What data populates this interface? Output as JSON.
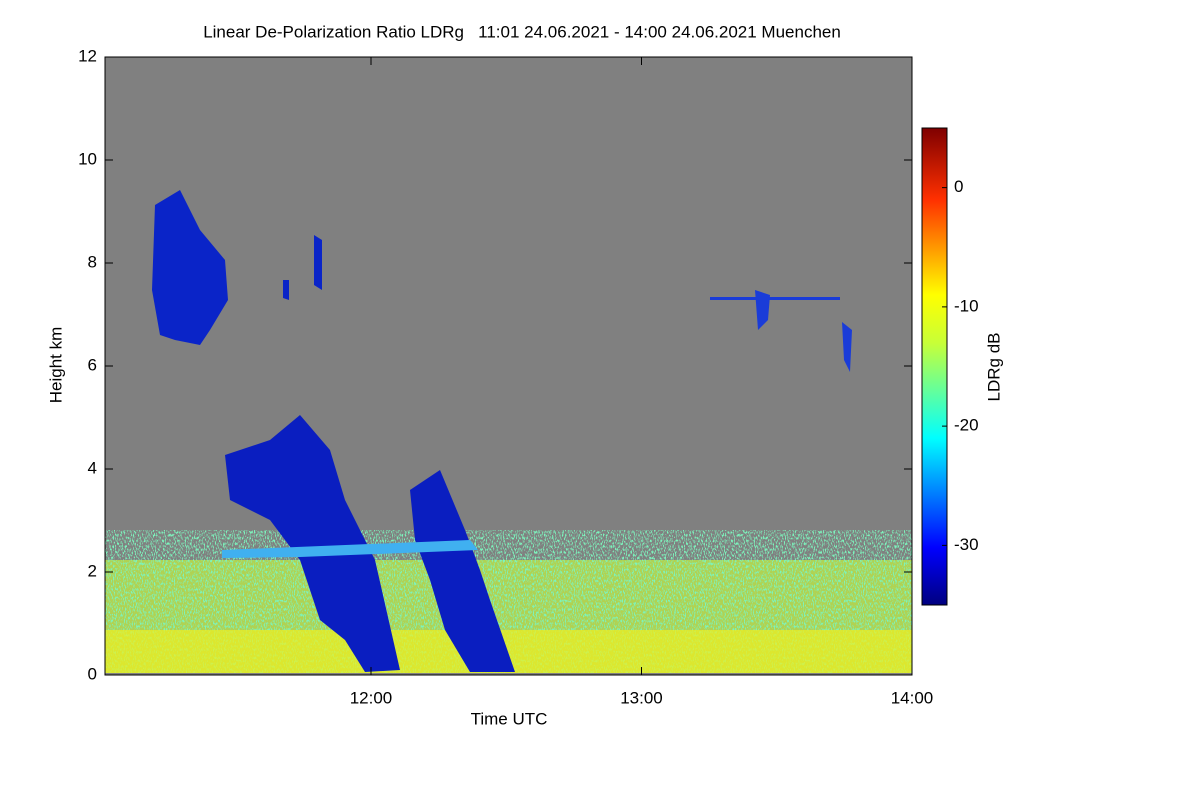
{
  "chart_data": {
    "type": "heatmap",
    "title": "Linear De-Polarization Ratio LDRg   11:01 24.06.2021 - 14:00 24.06.2021 Muenchen",
    "xlabel": "Time UTC",
    "ylabel": "Height km",
    "xlim": [
      661,
      840
    ],
    "xticks": [
      {
        "value": 720,
        "label": "12:00"
      },
      {
        "value": 780,
        "label": "13:00"
      },
      {
        "value": 840,
        "label": "14:00"
      }
    ],
    "ylim": [
      0,
      12
    ],
    "yticks": [
      0,
      2,
      4,
      6,
      8,
      10,
      12
    ],
    "colorbar": {
      "label": "LDRg dB",
      "lim": [
        -35,
        5
      ],
      "ticks": [
        0,
        -10,
        -20,
        -30
      ]
    }
  }
}
